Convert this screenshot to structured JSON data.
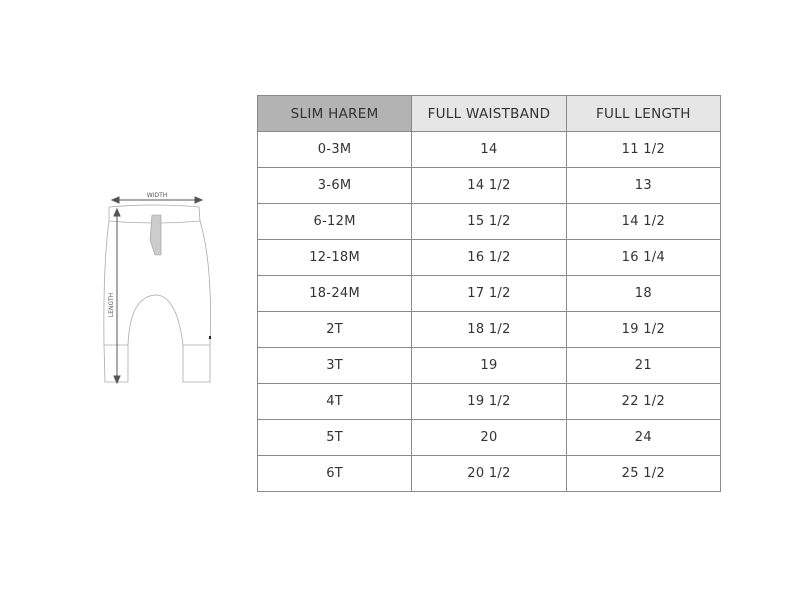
{
  "figure": {
    "width_label": "WIDTH",
    "length_label": "LENGTH"
  },
  "table": {
    "headers": [
      "SLIM HAREM",
      "FULL WAISTBAND",
      "FULL LENGTH"
    ],
    "header_colors": [
      "#b3b3b3",
      "#e6e6e6",
      "#e6e6e6"
    ],
    "rows": [
      [
        "0-3M",
        "14",
        "11 1/2"
      ],
      [
        "3-6M",
        "14 1/2",
        "13"
      ],
      [
        "6-12M",
        "15 1/2",
        "14 1/2"
      ],
      [
        "12-18M",
        "16 1/2",
        "16 1/4"
      ],
      [
        "18-24M",
        "17 1/2",
        "18"
      ],
      [
        "2T",
        "18 1/2",
        "19 1/2"
      ],
      [
        "3T",
        "19",
        "21"
      ],
      [
        "4T",
        "19 1/2",
        "22 1/2"
      ],
      [
        "5T",
        "20",
        "24"
      ],
      [
        "6T",
        "20 1/2",
        "25 1/2"
      ]
    ]
  }
}
